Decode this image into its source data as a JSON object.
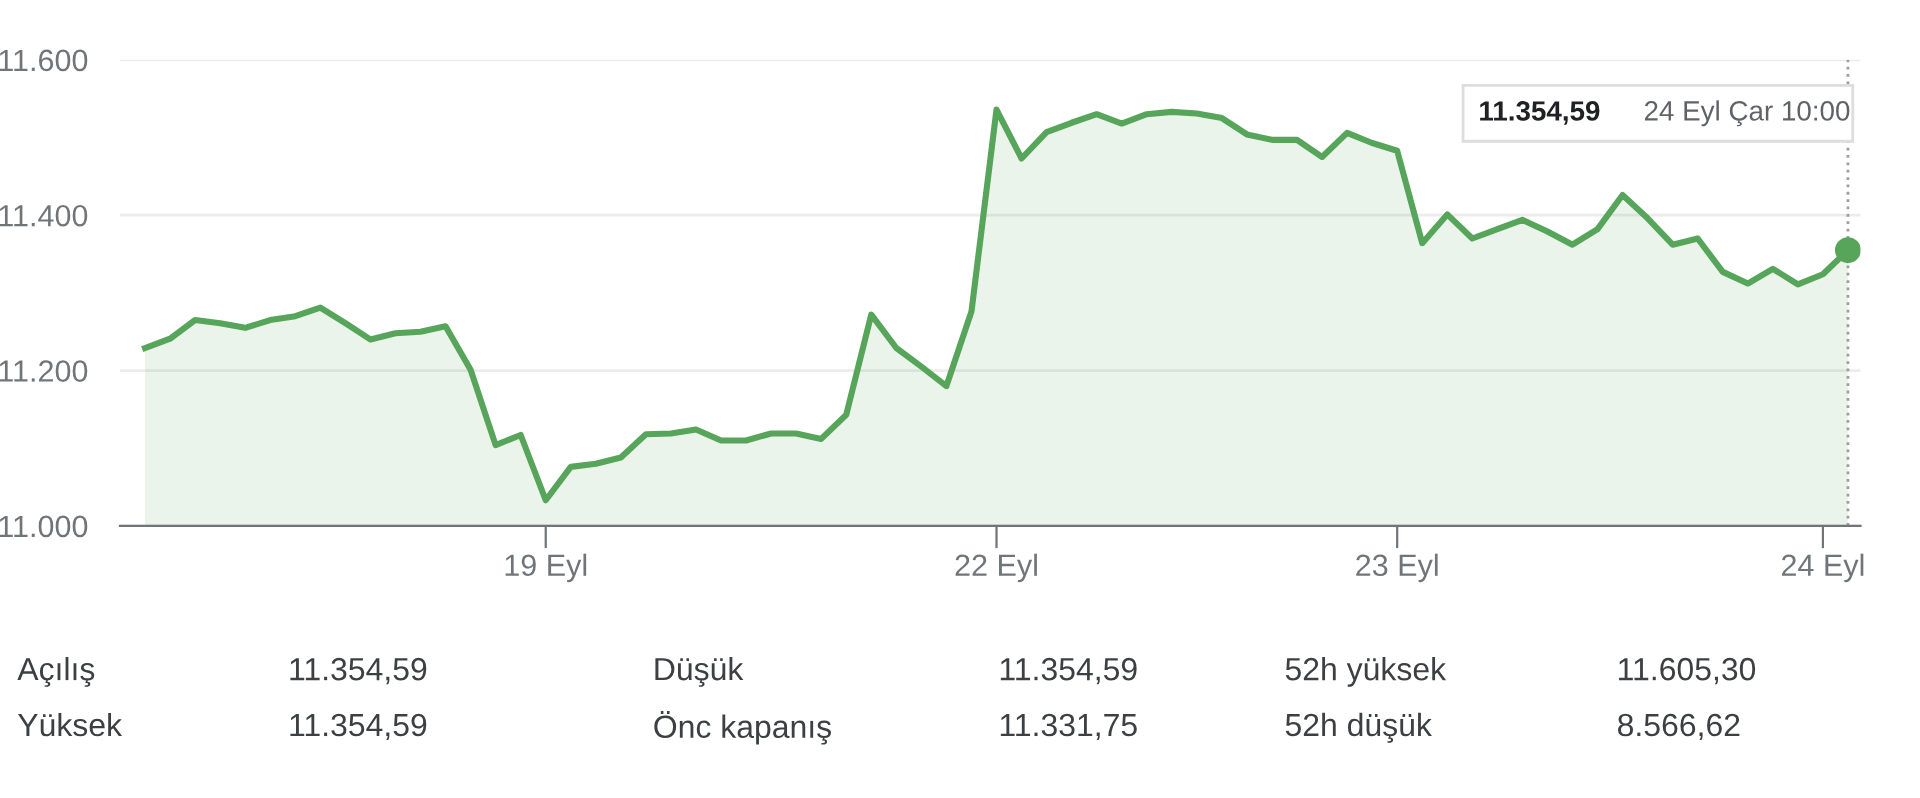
{
  "chart_data": {
    "type": "area",
    "categories": [
      null,
      null,
      null,
      null,
      null,
      null,
      null,
      null,
      null,
      null,
      null,
      null,
      null,
      null,
      null,
      null,
      "19 Eyl",
      null,
      null,
      null,
      null,
      null,
      null,
      null,
      null,
      null,
      null,
      null,
      null,
      null,
      null,
      null,
      null,
      null,
      "22 Eyl",
      null,
      null,
      null,
      null,
      null,
      null,
      null,
      null,
      null,
      null,
      null,
      null,
      null,
      null,
      null,
      "23 Eyl",
      null,
      null,
      null,
      null,
      null,
      null,
      null,
      null,
      null,
      null,
      null,
      null,
      null,
      null,
      null,
      null,
      "24 Eyl",
      null
    ],
    "ylim": [
      11000,
      11600
    ],
    "yticks": [
      {
        "value": 11000,
        "label": "11.000"
      },
      {
        "value": 11200,
        "label": "11.200"
      },
      {
        "value": 11400,
        "label": "11.400"
      },
      {
        "value": 11600,
        "label": "11.600"
      }
    ],
    "grid": "y",
    "series": [
      {
        "color": "#57a55a",
        "values": [
          11229,
          11241,
          11265,
          11261,
          11255,
          11265,
          11270,
          11281,
          11261,
          11240,
          11248,
          11250,
          11257,
          11201,
          11104,
          11117,
          11033,
          11076,
          11080,
          11088,
          11118,
          11119,
          11124,
          11110,
          11110,
          11119,
          11119,
          11112,
          11143,
          11272,
          11229,
          11205,
          11180,
          11276,
          11536,
          11473,
          11507,
          11519,
          11530,
          11518,
          11530,
          11533,
          11531,
          11525,
          11504,
          11497,
          11497,
          11475,
          11506,
          11493,
          11483,
          11364,
          11401,
          11370,
          11382,
          11394,
          11379,
          11362,
          11382,
          11426,
          11396,
          11362,
          11370,
          11327,
          11312,
          11331,
          11311,
          11324,
          11355
        ]
      },
      {
        "type": "scatter",
        "color": "#57a55a",
        "marker": "circle",
        "values": [
          null,
          null,
          null,
          null,
          null,
          null,
          null,
          null,
          null,
          null,
          null,
          null,
          null,
          null,
          null,
          null,
          null,
          null,
          null,
          null,
          null,
          null,
          null,
          null,
          null,
          null,
          null,
          null,
          null,
          null,
          null,
          null,
          null,
          null,
          null,
          null,
          null,
          null,
          null,
          null,
          null,
          null,
          null,
          null,
          null,
          null,
          null,
          null,
          null,
          null,
          null,
          null,
          null,
          null,
          null,
          null,
          null,
          null,
          null,
          null,
          null,
          null,
          null,
          null,
          null,
          null,
          null,
          null,
          11355
        ]
      }
    ],
    "annotations": [
      "11.354,59",
      "24 Eyl Çar 10:00",
      "Açılış",
      "11.354,59",
      "Düşük",
      "11.354,59",
      "52h yüksek",
      "11.605,30",
      "Yüksek",
      "11.354,59",
      "Önc kapanış",
      "11.331,75",
      "52h düşük",
      "8.566,62"
    ]
  }
}
